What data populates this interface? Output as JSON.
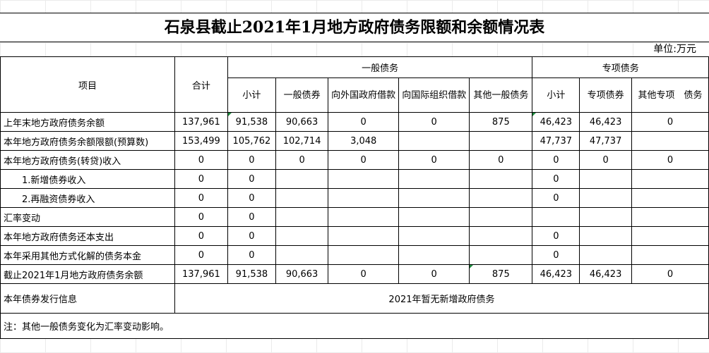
{
  "title": "石泉县截止2021年1月地方政府债务限额和余额情况表",
  "unit": "单位:万元",
  "headers": {
    "item": "项目",
    "total": "合计",
    "general_group": "一般债务",
    "special_group": "专项债务",
    "general_cols": [
      "小计",
      "一般债券",
      "向外国政府借款",
      "向国际组织借款",
      "其他一般债务"
    ],
    "special_cols": [
      "小计",
      "专项债券",
      "其他专项　债务"
    ]
  },
  "rows": [
    {
      "label": "上年末地方政府债务余额",
      "cells": [
        "137,961",
        "91,538",
        "90,663",
        "0",
        "0",
        "875",
        "46,423",
        "46,423",
        "0"
      ]
    },
    {
      "label": "本年地方政府债务余额限额(预算数)",
      "cells": [
        "153,499",
        "105,762",
        "102,714",
        "3,048",
        "",
        "",
        "47,737",
        "47,737",
        ""
      ]
    },
    {
      "label": "本年地方政府债务(转贷)收入",
      "cells": [
        "0",
        "0",
        "0",
        "0",
        "0",
        "0",
        "0",
        "0",
        "0"
      ]
    },
    {
      "label": "1.新增债券收入",
      "cells": [
        "0",
        "0",
        "",
        "",
        "",
        "",
        "0",
        "",
        ""
      ]
    },
    {
      "label": "2.再融资债券收入",
      "cells": [
        "0",
        "0",
        "",
        "",
        "",
        "",
        "0",
        "",
        ""
      ]
    },
    {
      "label": "汇率变动",
      "cells": [
        "0",
        "0",
        "",
        "",
        "",
        "",
        "",
        "",
        ""
      ]
    },
    {
      "label": "本年地方政府债务还本支出",
      "cells": [
        "0",
        "0",
        "",
        "",
        "",
        "",
        "0",
        "",
        ""
      ]
    },
    {
      "label": "本年采用其他方式化解的债务本金",
      "cells": [
        "0",
        "0",
        "",
        "",
        "",
        "",
        "0",
        "",
        ""
      ]
    },
    {
      "label": "截止2021年1月地方政府债务余额",
      "cells": [
        "137,961",
        "91,538",
        "90,663",
        "0",
        "0",
        "875",
        "46,423",
        "46,423",
        "0"
      ]
    }
  ],
  "issuance": {
    "label": "本年债券发行信息",
    "value": "2021年暂无新增政府债务"
  },
  "note": "注：其他一般债务变化为汇率变动影响。"
}
